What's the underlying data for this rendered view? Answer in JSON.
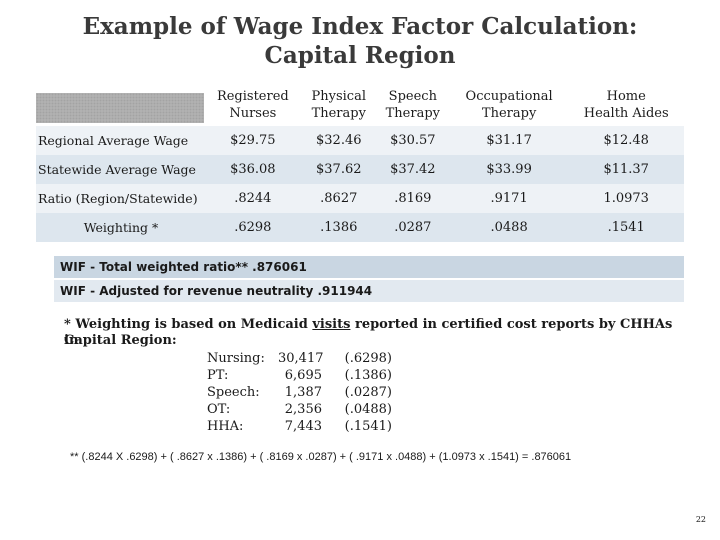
{
  "title": {
    "line1": "Example of Wage Index Factor Calculation:",
    "line2": "Capital Region"
  },
  "table": {
    "headers": [
      {
        "line1": "Registered",
        "line2": "Nurses"
      },
      {
        "line1": "Physical",
        "line2": "Therapy"
      },
      {
        "line1": "Speech",
        "line2": "Therapy"
      },
      {
        "line1": "Occupational",
        "line2": "Therapy"
      },
      {
        "line1": "Home",
        "line2": "Health Aides"
      }
    ],
    "rows": [
      {
        "label": "Regional Average Wage",
        "values": [
          "$29.75",
          "$32.46",
          "$30.57",
          "$31.17",
          "$12.48"
        ]
      },
      {
        "label": "Statewide Average Wage",
        "values": [
          "$36.08",
          "$37.62",
          "$37.42",
          "$33.99",
          "$11.37"
        ]
      },
      {
        "label": "Ratio (Region/Statewide)",
        "values": [
          ".8244",
          ".8627",
          ".8169",
          ".9171",
          "1.0973"
        ]
      },
      {
        "label": "Weighting *",
        "values": [
          ".6298",
          ".1386",
          ".0287",
          ".0488",
          ".1541"
        ]
      }
    ]
  },
  "wif_total": "WIF - Total weighted ratio**  .876061",
  "wif_adjusted": "WIF - Adjusted for revenue neutrality  .911944",
  "note": {
    "before": "* Weighting is based on Medicaid ",
    "underlined": "visits",
    "after": " reported in certified cost reports by  CHHAs in",
    "line2": "Capital Region:"
  },
  "visits": {
    "names": [
      "Nursing:",
      "PT:",
      "Speech:",
      "OT:",
      "HHA:"
    ],
    "counts": [
      "30,417",
      "6,695",
      "1,387",
      "2,356",
      "7,443"
    ],
    "weights": [
      "(.6298)",
      "(.1386)",
      "(.0287)",
      "(.0488)",
      "(.1541)"
    ]
  },
  "formula": "**  (.8244 X  .6298) + ( .8627 x  .1386) + ( .8169 x  .0287) + ( .9171 x  .0488) + (1.0973 x  .1541) =  .876061",
  "page_number": "22"
}
